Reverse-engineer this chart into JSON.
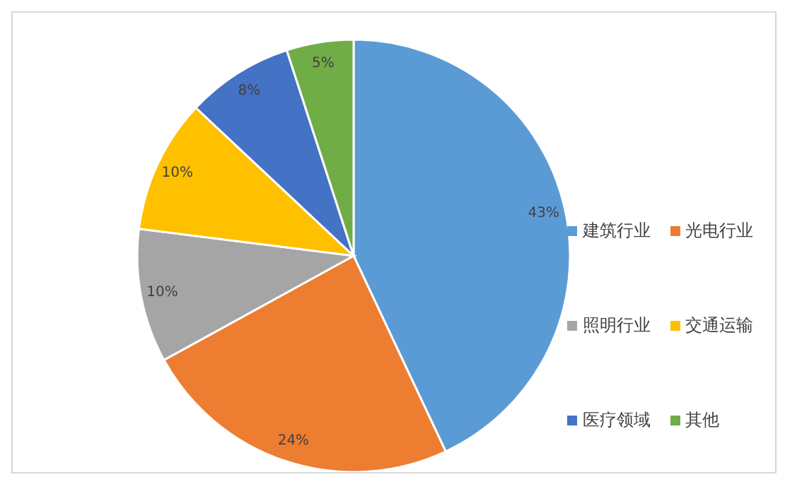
{
  "chart_data": {
    "type": "pie",
    "categories": [
      "建筑行业",
      "光电行业",
      "照明行业",
      "交通运输",
      "医疗领域",
      "其他"
    ],
    "values": [
      43,
      24,
      10,
      10,
      8,
      5
    ],
    "colors": [
      "#5b9bd5",
      "#ed7d31",
      "#a5a5a5",
      "#ffc000",
      "#4472c4",
      "#70ad47"
    ],
    "value_labels": [
      "43%",
      "24%",
      "10%",
      "10%",
      "8%",
      "5%"
    ],
    "legend": "right"
  }
}
